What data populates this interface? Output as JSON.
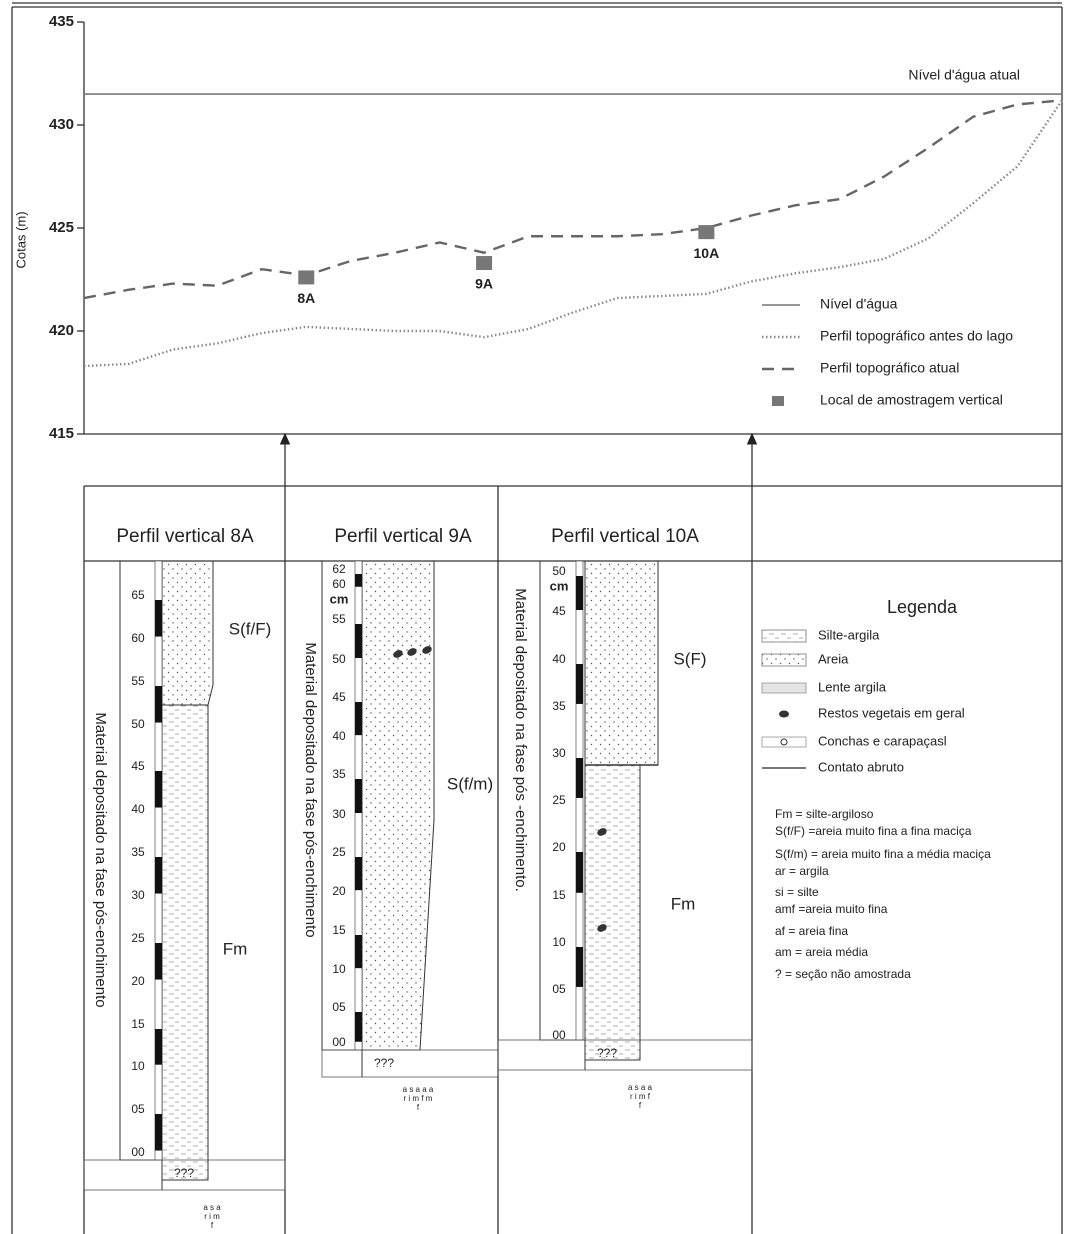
{
  "chart_data": {
    "type": "line",
    "y_label": "Cotas (m)",
    "annotation": "Nível d'água atual",
    "ylim": [
      415,
      435
    ],
    "yticks": [
      415,
      420,
      425,
      430,
      435
    ],
    "categories": [
      null,
      null,
      null,
      null,
      null,
      null,
      null,
      null,
      null,
      null,
      null,
      null,
      null,
      null,
      null,
      null,
      null,
      null,
      null,
      null,
      null,
      null,
      null
    ],
    "series": [
      {
        "name": "Nível d'água",
        "color": "#777777",
        "style": "solid",
        "values": [
          431.5,
          431.5,
          431.5,
          431.5,
          431.5,
          431.5,
          431.5,
          431.5,
          431.5,
          431.5,
          431.5,
          431.5,
          431.5,
          431.5,
          431.5,
          431.5,
          431.5,
          431.5,
          431.5,
          431.5,
          431.5,
          431.5,
          431.5
        ]
      },
      {
        "name": "Perfil topográfico antes do lago",
        "color": "#888888",
        "style": "dotted",
        "values": [
          418.3,
          418.4,
          419.1,
          419.4,
          419.9,
          420.2,
          420.1,
          420.0,
          420.0,
          419.7,
          420.1,
          420.9,
          421.6,
          421.7,
          421.8,
          422.4,
          422.8,
          423.1,
          423.5,
          424.5,
          426.2,
          428.0,
          431.2
        ]
      },
      {
        "name": "Perfil topográfico atual",
        "color": "#666666",
        "style": "dashed",
        "values": [
          421.6,
          422.0,
          422.3,
          422.2,
          423.0,
          422.7,
          423.4,
          423.8,
          424.3,
          423.8,
          424.6,
          424.6,
          424.6,
          424.7,
          425.0,
          425.6,
          426.1,
          426.4,
          427.5,
          428.9,
          430.4,
          431.0,
          431.2
        ]
      },
      {
        "name": "Local de amostragem vertical",
        "color": "#777777",
        "style": "marker",
        "values": [
          null,
          null,
          null,
          null,
          null,
          422.6,
          null,
          null,
          null,
          423.3,
          null,
          null,
          null,
          null,
          424.8,
          null,
          null,
          null,
          null,
          null,
          null,
          null,
          null
        ],
        "point_labels": [
          null,
          null,
          null,
          null,
          null,
          "8A",
          null,
          null,
          null,
          "9A",
          null,
          null,
          null,
          null,
          "10A",
          null,
          null,
          null,
          null,
          null,
          null,
          null,
          null
        ]
      }
    ]
  },
  "profiles": [
    {
      "title": "Perfil vertical 8A",
      "side_text": "Material depositado na fase pós-enchimento",
      "depth_labels": [
        "65",
        "60",
        "55",
        "50",
        "45",
        "40",
        "35",
        "30",
        "25",
        "20",
        "15",
        "10",
        "05",
        "00"
      ],
      "facies": [
        "S(f/F)",
        "Fm"
      ],
      "unsampled": "???",
      "grain_scale": [
        "a s a",
        "r i m",
        "f"
      ]
    },
    {
      "title": "Perfil vertical 9A",
      "side_text": "Material depositado na fase pós-enchimento",
      "unit": "cm",
      "depth_labels": [
        "62",
        "60",
        "55",
        "50",
        "45",
        "40",
        "35",
        "30",
        "25",
        "20",
        "15",
        "10",
        "05",
        "00"
      ],
      "facies": [
        "S(f/m)"
      ],
      "unsampled": "???",
      "grain_scale": [
        "a s a a a",
        "r i m f m",
        "f"
      ]
    },
    {
      "title": "Perfil vertical 10A",
      "side_text": "Material depositado na fase pós -enchimento.",
      "unit": "cm",
      "depth_labels": [
        "50",
        "45",
        "40",
        "35",
        "30",
        "25",
        "20",
        "15",
        "10",
        "05",
        "00"
      ],
      "facies": [
        "S(F)",
        "Fm"
      ],
      "unsampled": "???",
      "grain_scale": [
        "a s a a",
        "r i m f",
        "f"
      ]
    }
  ],
  "legend": {
    "title": "Legenda",
    "items": [
      "Silte-argila",
      "Areia",
      "Lente argila",
      "Restos vegetais em geral",
      "Conchas e carapaçasl",
      "Contato abruto"
    ],
    "notes": [
      "Fm = silte-argiloso",
      "S(f/F) =areia muito fina a fina maciça",
      "S(f/m) = areia muito fina a média maciça",
      "ar = argila",
      "si = silte",
      "amf =areia muito fina",
      "af = areia fina",
      "am = areia média",
      "? = seção não amostrada"
    ]
  }
}
